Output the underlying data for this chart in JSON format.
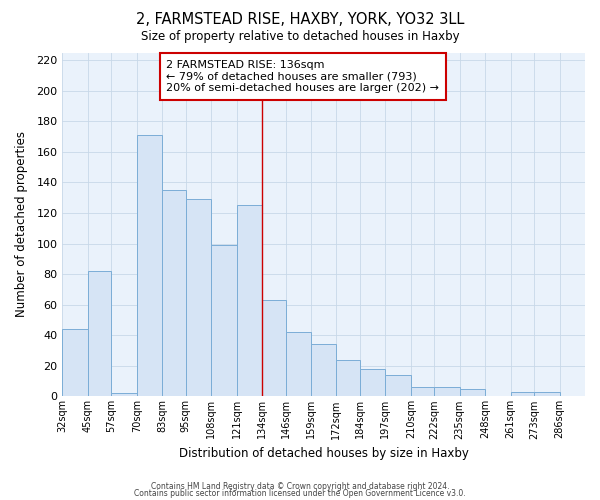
{
  "title1": "2, FARMSTEAD RISE, HAXBY, YORK, YO32 3LL",
  "title2": "Size of property relative to detached houses in Haxby",
  "xlabel": "Distribution of detached houses by size in Haxby",
  "ylabel": "Number of detached properties",
  "bin_labels": [
    "32sqm",
    "45sqm",
    "57sqm",
    "70sqm",
    "83sqm",
    "95sqm",
    "108sqm",
    "121sqm",
    "134sqm",
    "146sqm",
    "159sqm",
    "172sqm",
    "184sqm",
    "197sqm",
    "210sqm",
    "222sqm",
    "235sqm",
    "248sqm",
    "261sqm",
    "273sqm",
    "286sqm"
  ],
  "bin_edges": [
    32,
    45,
    57,
    70,
    83,
    95,
    108,
    121,
    134,
    146,
    159,
    172,
    184,
    197,
    210,
    222,
    235,
    248,
    261,
    273,
    286,
    299
  ],
  "bar_heights": [
    44,
    82,
    2,
    171,
    135,
    129,
    99,
    125,
    63,
    42,
    34,
    24,
    18,
    14,
    6,
    6,
    5,
    0,
    3,
    3,
    0
  ],
  "bar_fill_color": "#d6e4f5",
  "bar_edge_color": "#7badd6",
  "property_line_x": 134,
  "property_line_color": "#cc0000",
  "annotation_text": "2 FARMSTEAD RISE: 136sqm\n← 79% of detached houses are smaller (793)\n20% of semi-detached houses are larger (202) →",
  "annotation_box_color": "#ffffff",
  "annotation_box_edge": "#cc0000",
  "ylim": [
    0,
    225
  ],
  "yticks": [
    0,
    20,
    40,
    60,
    80,
    100,
    120,
    140,
    160,
    180,
    200,
    220
  ],
  "footer1": "Contains HM Land Registry data © Crown copyright and database right 2024.",
  "footer2": "Contains public sector information licensed under the Open Government Licence v3.0.",
  "background_color": "#ffffff",
  "grid_color": "#c8d8e8",
  "plot_bg_color": "#eaf2fb"
}
